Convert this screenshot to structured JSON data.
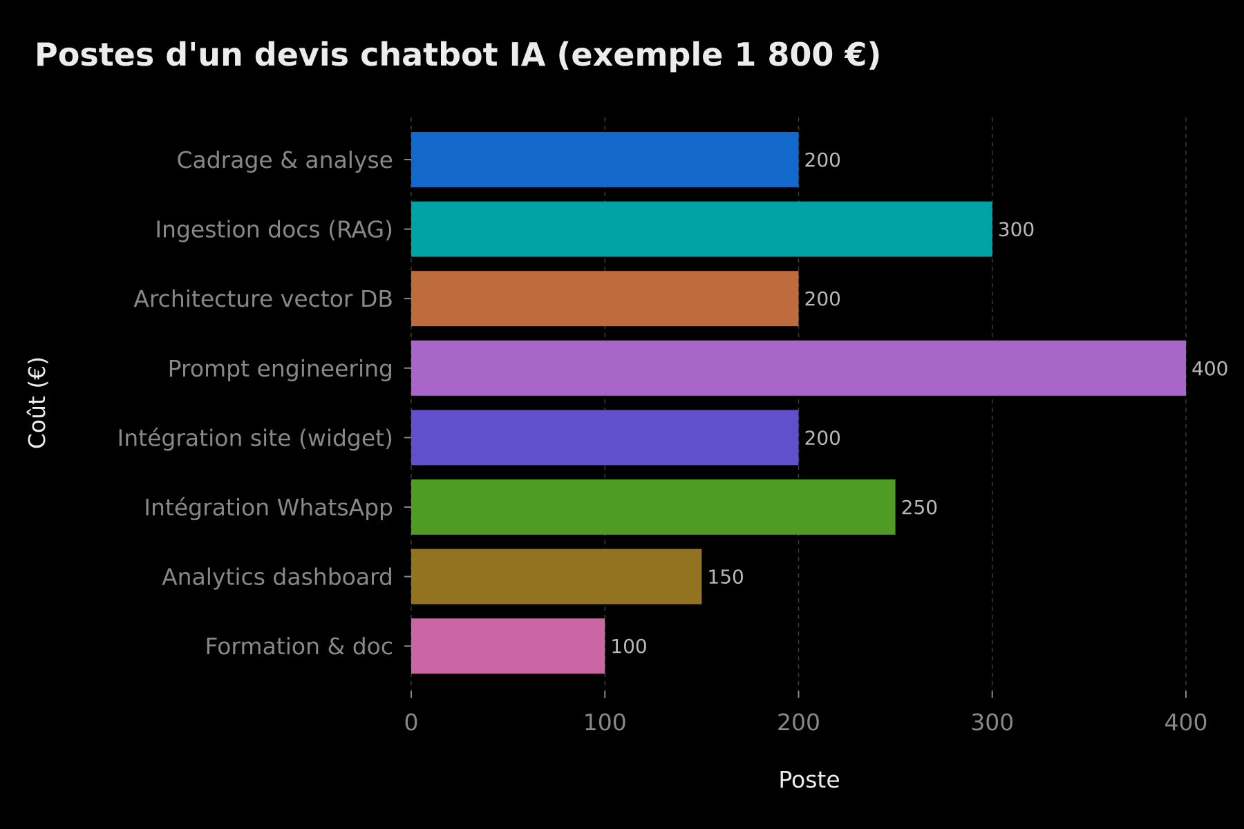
{
  "chart_data": {
    "type": "bar",
    "orientation": "horizontal",
    "title": "Postes d'un devis chatbot IA (exemple 1 800 €)",
    "xlabel": "Poste",
    "ylabel": "Coût (€)",
    "categories": [
      "Cadrage & analyse",
      "Ingestion docs (RAG)",
      "Architecture vector DB",
      "Prompt engineering",
      "Intégration site (widget)",
      "Intégration WhatsApp",
      "Analytics dashboard",
      "Formation & doc"
    ],
    "values": [
      200,
      300,
      200,
      400,
      200,
      250,
      150,
      100
    ],
    "data_labels": [
      "200",
      "300",
      "200",
      "400",
      "200",
      "250",
      "150",
      "100"
    ],
    "bar_colors": [
      "#1268CB",
      "#00A3A3",
      "#BE6C3E",
      "#A866C9",
      "#6050CC",
      "#4E9C24",
      "#93731F",
      "#CA66A4"
    ],
    "xlim": [
      0,
      400
    ],
    "xticks": [
      0,
      100,
      200,
      300,
      400
    ],
    "xtick_labels": [
      "0",
      "100",
      "200",
      "300",
      "400"
    ],
    "grid": "x-dashed",
    "legend": "none",
    "colors": {
      "background": "#000000",
      "title": "#ECECEC",
      "tick_label": "#888888",
      "axis_title": "#ECECEC",
      "data_label": "#B8B8B8",
      "grid": "#3C3C3C",
      "tick": "#888888"
    }
  }
}
